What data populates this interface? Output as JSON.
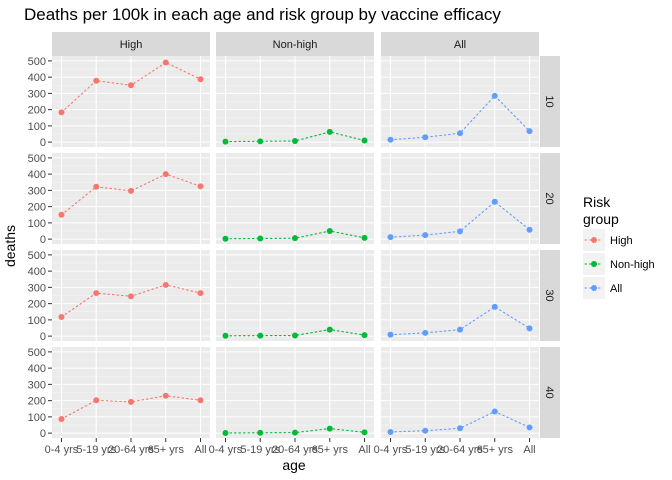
{
  "chart_data": {
    "type": "line",
    "title": "Deaths per 100k in each age and risk group by vaccine efficacy",
    "xlabel": "age",
    "ylabel": "deaths",
    "categories": [
      "0-4 yrs",
      "5-19 yrs",
      "20-64 yrs",
      "65+ yrs",
      "All"
    ],
    "ylim": [
      -30,
      530
    ],
    "yticks": [
      0,
      100,
      200,
      300,
      400,
      500
    ],
    "grid": true,
    "legend": {
      "title": "Risk\ngroup",
      "position": "right",
      "entries": [
        "High",
        "Non-high",
        "All"
      ]
    },
    "col_facets": [
      "High",
      "Non-high",
      "All"
    ],
    "row_facets": [
      "10",
      "20",
      "30",
      "40"
    ],
    "colors": {
      "High": "#F8766D",
      "Non-high": "#00BA38",
      "All": "#619CFF"
    },
    "panels": [
      {
        "row": "10",
        "col": "High",
        "values": [
          183,
          378,
          350,
          490,
          387
        ]
      },
      {
        "row": "10",
        "col": "Non-high",
        "values": [
          3,
          5,
          7,
          63,
          10
        ]
      },
      {
        "row": "10",
        "col": "All",
        "values": [
          15,
          30,
          55,
          285,
          68
        ]
      },
      {
        "row": "20",
        "col": "High",
        "values": [
          150,
          322,
          297,
          400,
          325
        ]
      },
      {
        "row": "20",
        "col": "Non-high",
        "values": [
          2,
          4,
          6,
          50,
          8
        ]
      },
      {
        "row": "20",
        "col": "All",
        "values": [
          12,
          25,
          48,
          230,
          58
        ]
      },
      {
        "row": "30",
        "col": "High",
        "values": [
          118,
          265,
          245,
          315,
          265
        ]
      },
      {
        "row": "30",
        "col": "Non-high",
        "values": [
          2,
          3,
          4,
          40,
          6
        ]
      },
      {
        "row": "30",
        "col": "All",
        "values": [
          9,
          20,
          40,
          180,
          48
        ]
      },
      {
        "row": "40",
        "col": "High",
        "values": [
          87,
          202,
          192,
          230,
          202
        ]
      },
      {
        "row": "40",
        "col": "Non-high",
        "values": [
          1,
          2,
          3,
          28,
          5
        ]
      },
      {
        "row": "40",
        "col": "All",
        "values": [
          7,
          15,
          30,
          133,
          35
        ]
      }
    ]
  }
}
